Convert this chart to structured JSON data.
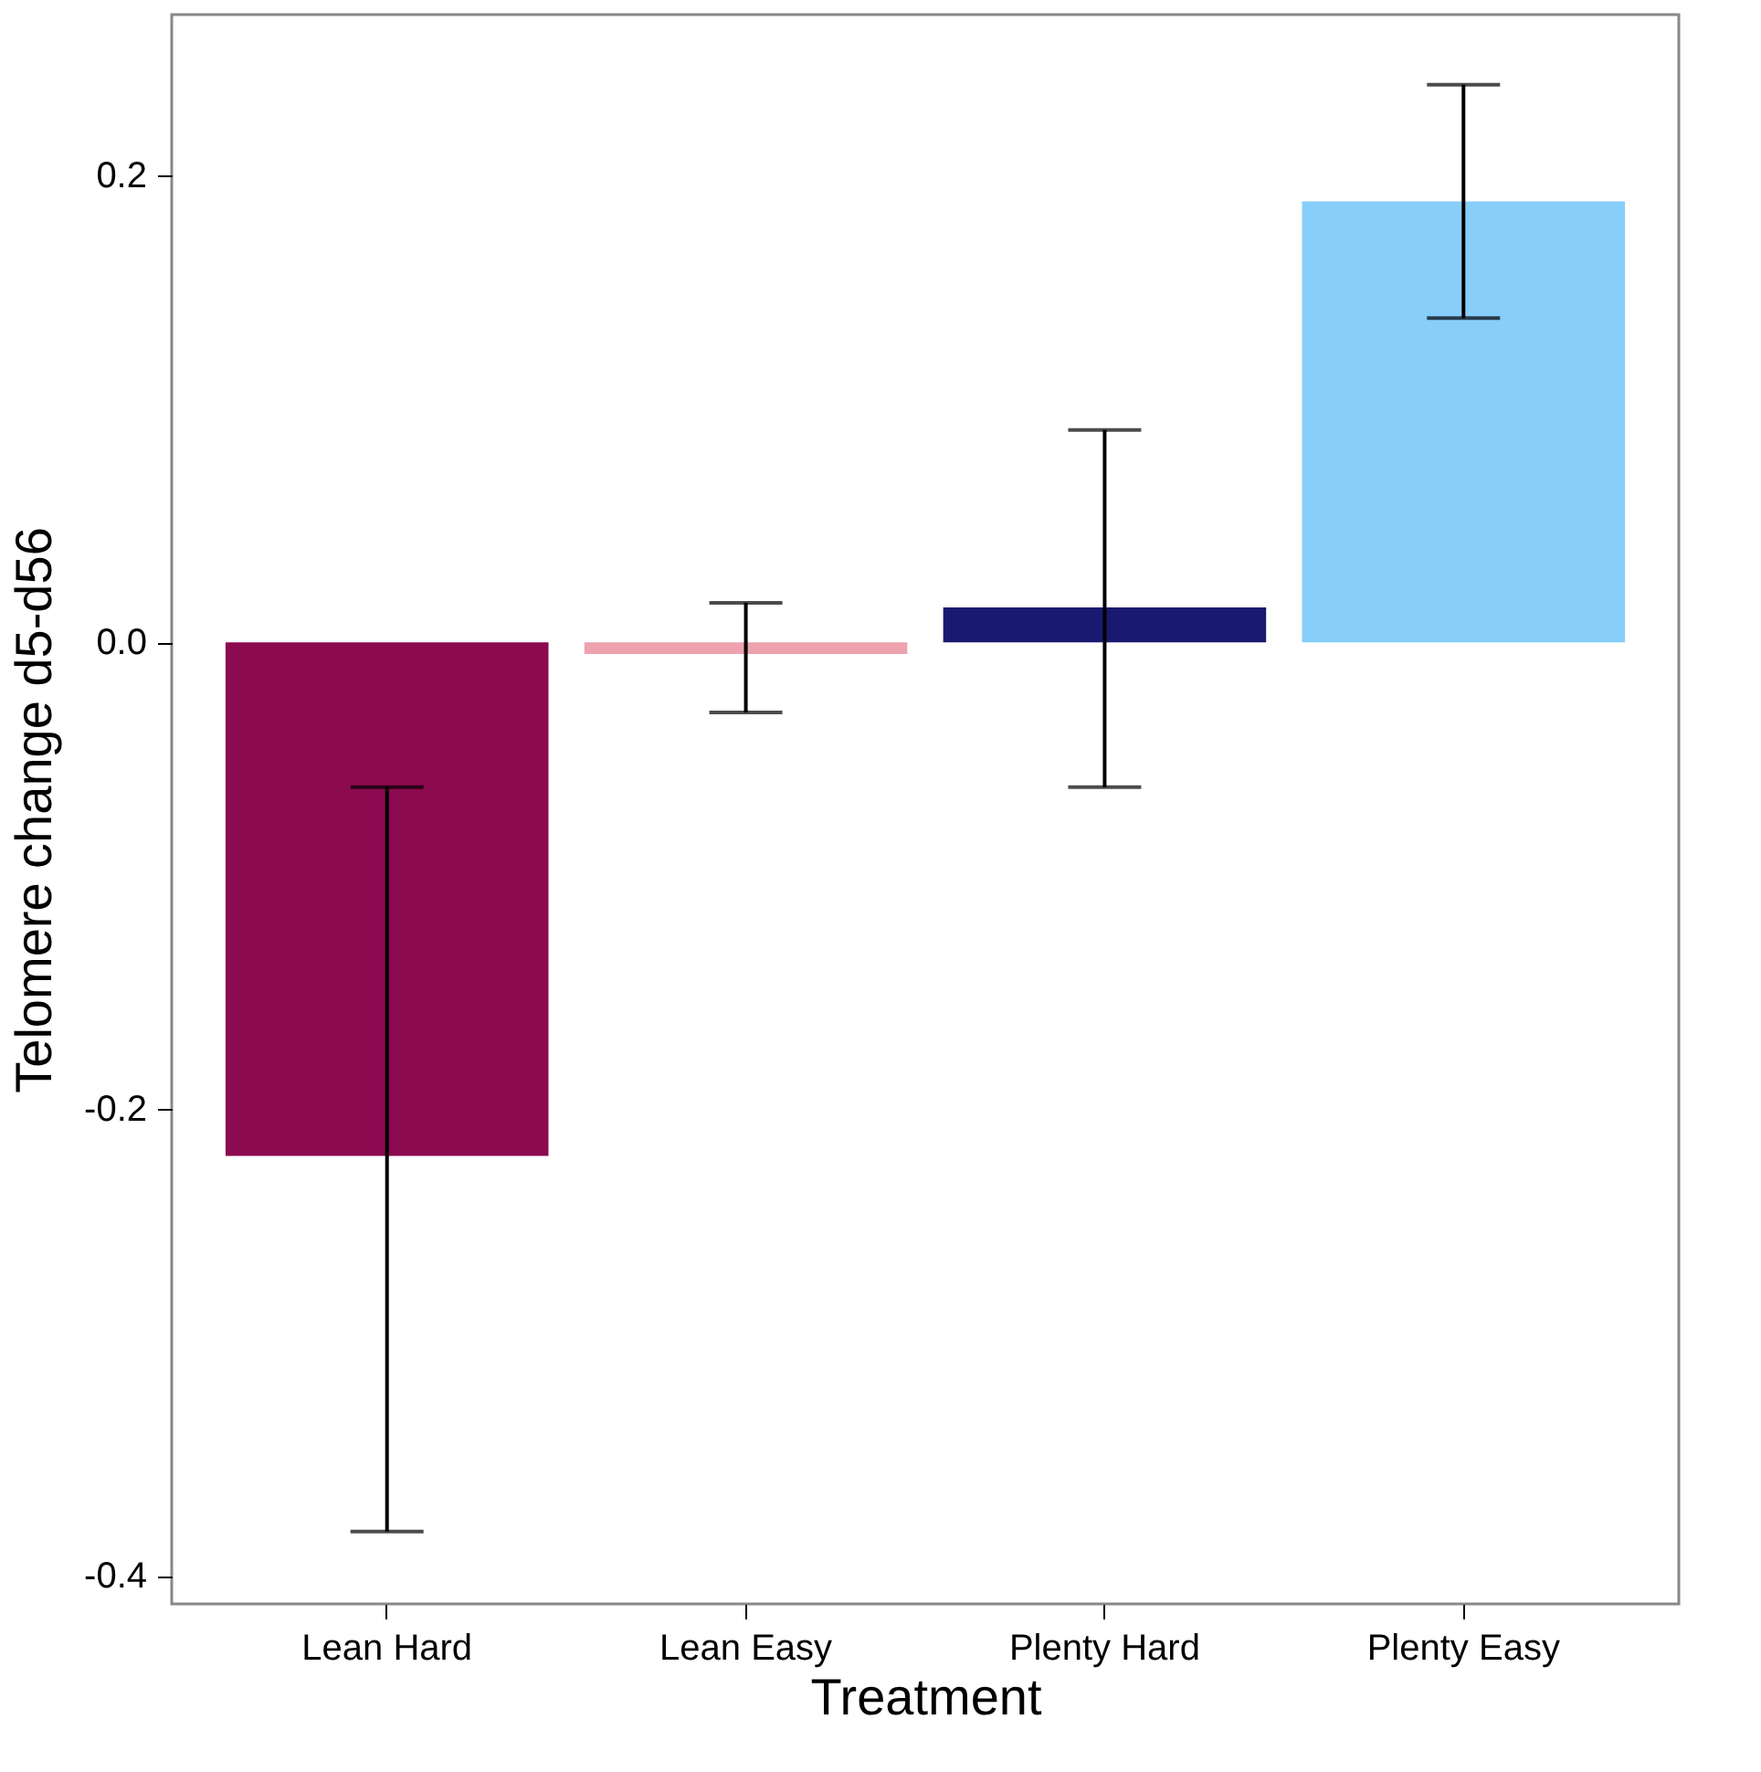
{
  "chart_data": {
    "type": "bar",
    "xlabel": "Treatment",
    "ylabel": "Telomere change d5-d56",
    "categories": [
      "Lean Hard",
      "Lean Easy",
      "Plenty Hard",
      "Plenty Easy"
    ],
    "values": [
      -0.22,
      -0.005,
      0.015,
      0.189
    ],
    "colors": [
      "#8b0a50",
      "#eea2ad",
      "#191970",
      "#87cefa"
    ],
    "errors": [
      [
        -0.381,
        -0.062
      ],
      [
        -0.03,
        0.017
      ],
      [
        -0.062,
        0.091
      ],
      [
        0.139,
        0.239
      ]
    ],
    "ylim": [
      -0.412,
      0.269
    ],
    "yticks": [
      -0.4,
      -0.2,
      {
        "value": 0,
        "label": "0.0"
      },
      0.2
    ],
    "grid": false
  }
}
